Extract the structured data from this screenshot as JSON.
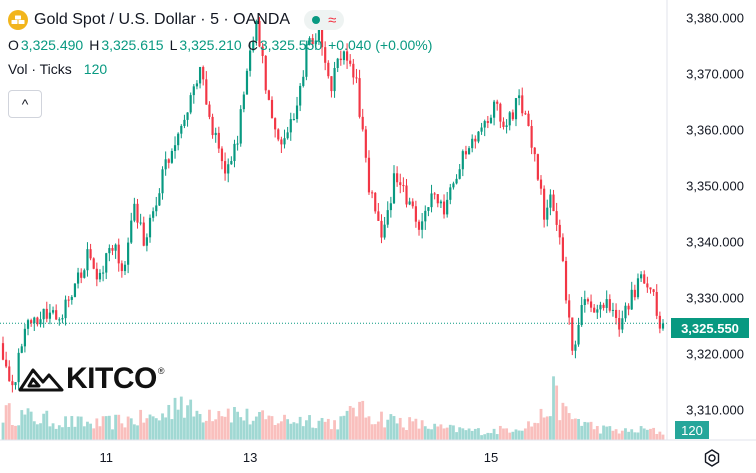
{
  "header": {
    "title": "Gold Spot / U.S. Dollar",
    "interval": "5",
    "source": "OANDA",
    "title_full": "Gold Spot / U.S. Dollar · 5 · OANDA",
    "icon": "gold-bars-icon",
    "status_icons": [
      "market-open-dot-icon",
      "wave-icon"
    ]
  },
  "ohlc": {
    "o_label": "O",
    "o_value": "3,325.490",
    "h_label": "H",
    "h_value": "3,325.615",
    "l_label": "L",
    "l_value": "3,325.210",
    "c_label": "C",
    "c_value": "3,325.550",
    "change": "+0.040 (+0.00%)"
  },
  "volume": {
    "label": "Vol · Ticks",
    "value": "120"
  },
  "collapse_button": "^",
  "price_badge": "3,325.550",
  "volume_badge": "120",
  "logo_text": "KITCO",
  "logo_mark": "®",
  "colors": {
    "up": "#089981",
    "down": "#f23645",
    "vol_up": "#80cbc4",
    "vol_down": "#f7a9a7",
    "gold": "#f2b51c",
    "axis_text": "#131722"
  },
  "chart_data": {
    "type": "candlestick",
    "title": "Gold Spot / U.S. Dollar · 5 · OANDA",
    "y_ticks": [
      "3,380.000",
      "3,370.000",
      "3,360.000",
      "3,350.000",
      "3,340.000",
      "3,330.000",
      "3,320.000",
      "3,310.000"
    ],
    "y_tick_values": [
      3380,
      3370,
      3360,
      3350,
      3340,
      3330,
      3320,
      3310
    ],
    "ylim": [
      3304.7,
      3383.3
    ],
    "x_ticks": [
      "11",
      "13",
      "15"
    ],
    "x_tick_index": [
      33,
      79,
      156
    ],
    "n_bars": 212,
    "last_price": 3325.55,
    "current_volume": 120,
    "price_path": [
      [
        0,
        3322
      ],
      [
        4,
        3313
      ],
      [
        8,
        3325
      ],
      [
        14,
        3327
      ],
      [
        20,
        3328
      ],
      [
        24,
        3332
      ],
      [
        28,
        3338
      ],
      [
        32,
        3333
      ],
      [
        36,
        3340
      ],
      [
        40,
        3335
      ],
      [
        43,
        3347
      ],
      [
        46,
        3340
      ],
      [
        52,
        3352
      ],
      [
        56,
        3358
      ],
      [
        60,
        3364
      ],
      [
        64,
        3371
      ],
      [
        68,
        3360
      ],
      [
        72,
        3352
      ],
      [
        76,
        3358
      ],
      [
        79,
        3372
      ],
      [
        82,
        3380
      ],
      [
        86,
        3365
      ],
      [
        90,
        3356
      ],
      [
        94,
        3362
      ],
      [
        98,
        3374
      ],
      [
        102,
        3378
      ],
      [
        106,
        3368
      ],
      [
        110,
        3375
      ],
      [
        114,
        3368
      ],
      [
        118,
        3350
      ],
      [
        122,
        3340
      ],
      [
        126,
        3351
      ],
      [
        130,
        3348
      ],
      [
        134,
        3343
      ],
      [
        138,
        3348
      ],
      [
        142,
        3345
      ],
      [
        146,
        3352
      ],
      [
        150,
        3358
      ],
      [
        154,
        3361
      ],
      [
        158,
        3364
      ],
      [
        162,
        3361
      ],
      [
        166,
        3366
      ],
      [
        170,
        3358
      ],
      [
        174,
        3345
      ],
      [
        176,
        3350
      ],
      [
        179,
        3340
      ],
      [
        183,
        3321
      ],
      [
        187,
        3330
      ],
      [
        190,
        3327
      ],
      [
        194,
        3330
      ],
      [
        198,
        3326
      ],
      [
        202,
        3330
      ],
      [
        206,
        3334
      ],
      [
        209,
        3330
      ],
      [
        211,
        3326
      ]
    ],
    "volume_path": [
      [
        0,
        0.26
      ],
      [
        10,
        0.21
      ],
      [
        20,
        0.17
      ],
      [
        30,
        0.15
      ],
      [
        40,
        0.19
      ],
      [
        50,
        0.21
      ],
      [
        54,
        0.3
      ],
      [
        56,
        0.48
      ],
      [
        58,
        0.3
      ],
      [
        62,
        0.25
      ],
      [
        70,
        0.3
      ],
      [
        80,
        0.2
      ],
      [
        90,
        0.19
      ],
      [
        100,
        0.2
      ],
      [
        106,
        0.16
      ],
      [
        110,
        0.2
      ],
      [
        112,
        0.36
      ],
      [
        115,
        0.26
      ],
      [
        120,
        0.22
      ],
      [
        130,
        0.16
      ],
      [
        140,
        0.11
      ],
      [
        150,
        0.09
      ],
      [
        155,
        0.08
      ],
      [
        160,
        0.1
      ],
      [
        170,
        0.16
      ],
      [
        174,
        0.28
      ],
      [
        176,
        0.42
      ],
      [
        178,
        0.33
      ],
      [
        180,
        0.24
      ],
      [
        190,
        0.11
      ],
      [
        200,
        0.08
      ],
      [
        205,
        0.1
      ],
      [
        211,
        0.07
      ]
    ]
  }
}
